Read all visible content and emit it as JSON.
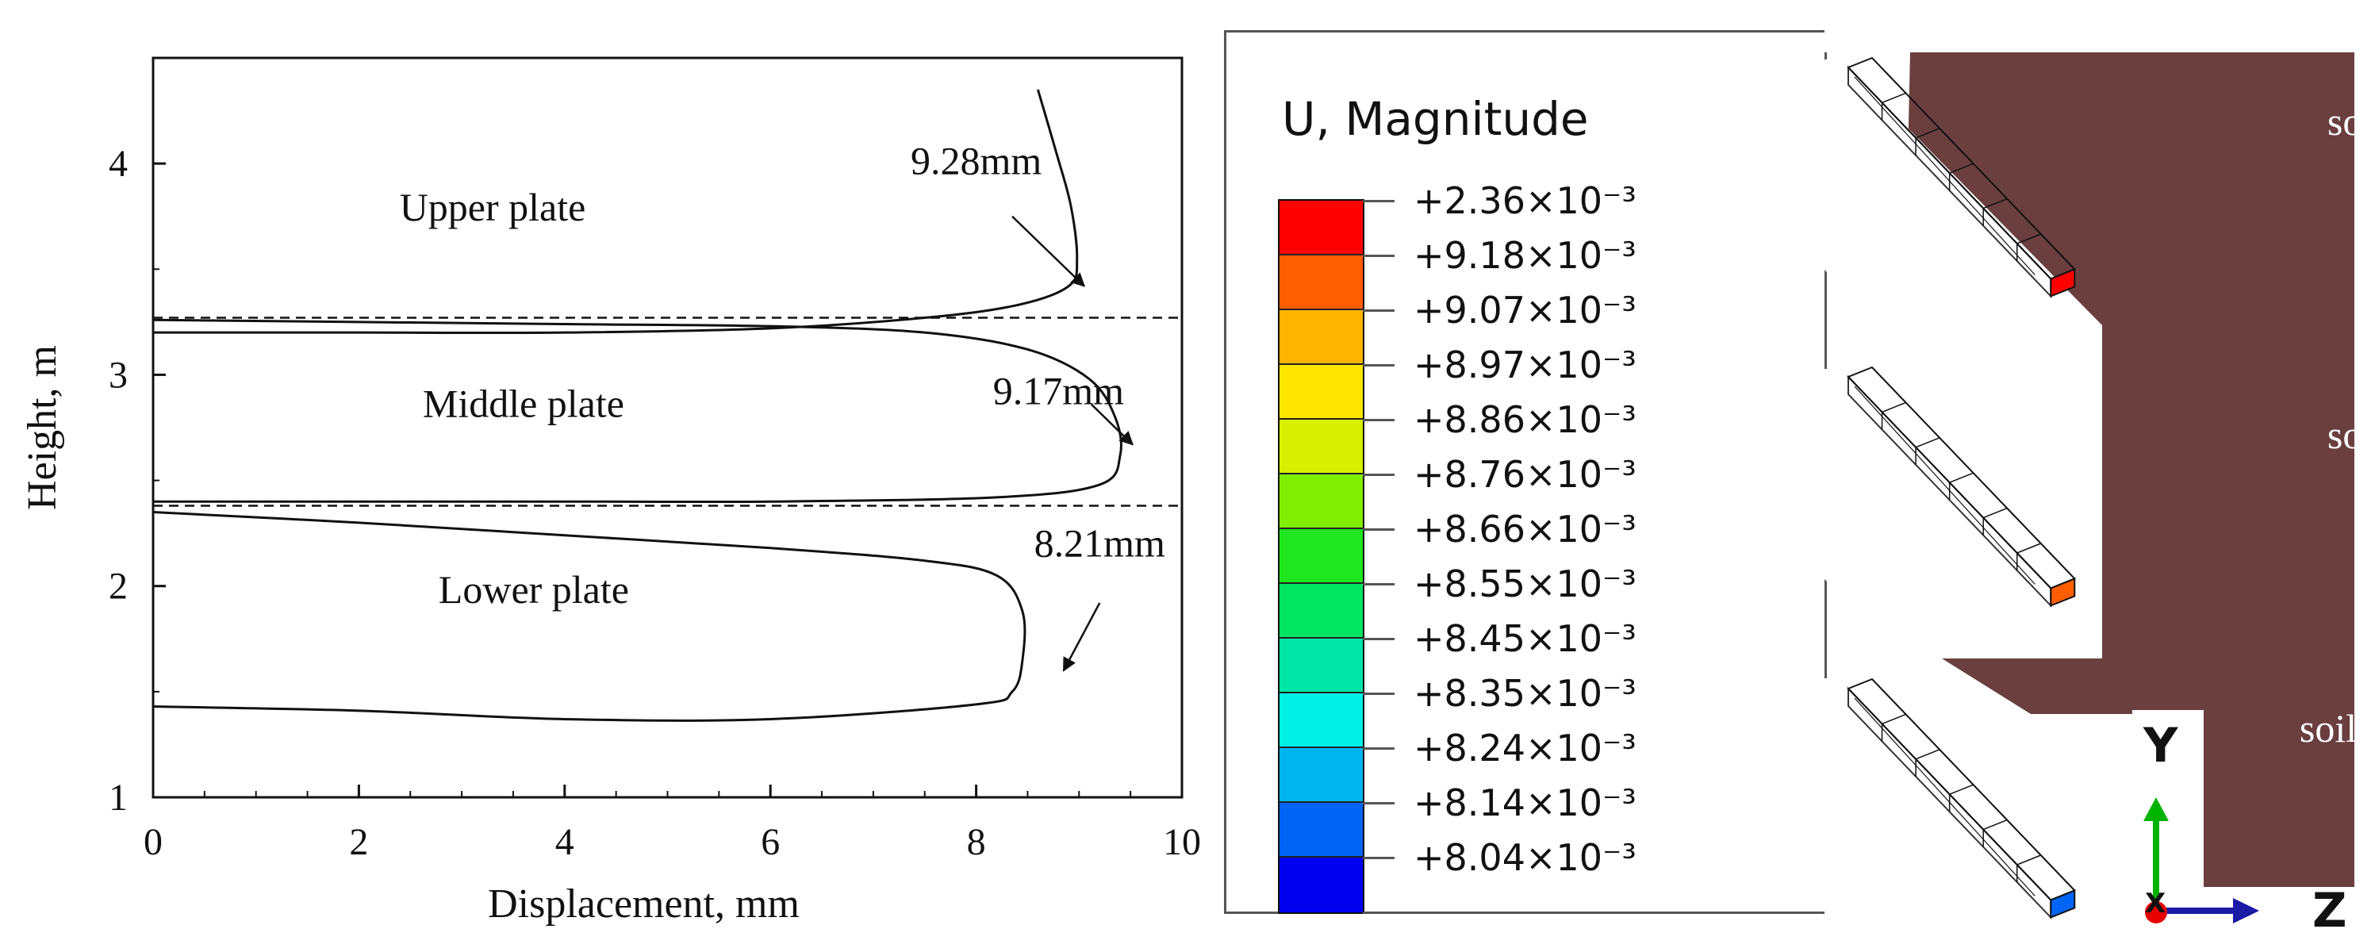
{
  "chart_data": {
    "type": "line",
    "title": "",
    "xlabel": "Displacement, mm",
    "ylabel": "Height, m",
    "xlim": [
      0,
      10
    ],
    "ylim": [
      1,
      4.5
    ],
    "xticks": [
      0,
      2,
      4,
      6,
      8,
      10
    ],
    "yticks": [
      1,
      2,
      3,
      4
    ],
    "grid": false,
    "plate_boundaries": [
      3.27,
      2.38
    ],
    "plate_labels": [
      {
        "text": "Upper plate",
        "x": 3.3,
        "y": 3.73
      },
      {
        "text": "Middle plate",
        "x": 3.6,
        "y": 2.8
      },
      {
        "text": "Lower plate",
        "x": 3.7,
        "y": 1.92
      }
    ],
    "annotations": [
      {
        "text": "9.28mm",
        "x": 8.0,
        "y": 3.95,
        "arrow_from": [
          8.35,
          3.75
        ],
        "arrow_to": [
          9.05,
          3.42
        ]
      },
      {
        "text": "9.17mm",
        "x": 8.8,
        "y": 2.86,
        "arrow_from": [
          9.12,
          2.86
        ],
        "arrow_to": [
          9.52,
          2.67
        ]
      },
      {
        "text": "8.21mm",
        "x": 9.2,
        "y": 2.14,
        "arrow_from": [
          9.2,
          1.92
        ],
        "arrow_to": [
          8.85,
          1.6
        ]
      }
    ],
    "series": [
      {
        "points": [
          [
            8.6,
            4.35
          ],
          [
            8.78,
            4.05
          ],
          [
            8.92,
            3.8
          ],
          [
            8.98,
            3.55
          ],
          [
            8.9,
            3.42
          ],
          [
            8.4,
            3.33
          ],
          [
            7.5,
            3.27
          ],
          [
            6.0,
            3.22
          ],
          [
            4.0,
            3.2
          ],
          [
            2.0,
            3.2
          ],
          [
            0,
            3.2
          ]
        ]
      },
      {
        "points": [
          [
            0,
            3.26
          ],
          [
            2.0,
            3.25
          ],
          [
            4.0,
            3.24
          ],
          [
            6.0,
            3.23
          ],
          [
            7.5,
            3.2
          ],
          [
            8.5,
            3.12
          ],
          [
            9.1,
            2.98
          ],
          [
            9.35,
            2.8
          ],
          [
            9.4,
            2.62
          ],
          [
            9.2,
            2.48
          ],
          [
            8.2,
            2.42
          ],
          [
            6.0,
            2.4
          ],
          [
            4.0,
            2.4
          ],
          [
            0,
            2.4
          ]
        ]
      },
      {
        "points": [
          [
            0,
            2.35
          ],
          [
            2.0,
            2.3
          ],
          [
            4.0,
            2.24
          ],
          [
            6.0,
            2.18
          ],
          [
            7.5,
            2.12
          ],
          [
            8.2,
            2.05
          ],
          [
            8.45,
            1.88
          ],
          [
            8.45,
            1.65
          ],
          [
            8.35,
            1.5
          ],
          [
            8.0,
            1.44
          ],
          [
            6.0,
            1.37
          ],
          [
            4.0,
            1.37
          ],
          [
            2.0,
            1.41
          ],
          [
            0,
            1.43
          ]
        ]
      }
    ]
  },
  "legend": {
    "title": "U, Magnitude",
    "levels": [
      {
        "label": "+2.36×10⁻³",
        "color": "#ff0000"
      },
      {
        "label": "+9.18×10⁻³",
        "color": "#ff5e00"
      },
      {
        "label": "+9.07×10⁻³",
        "color": "#ffb400"
      },
      {
        "label": "+8.97×10⁻³",
        "color": "#ffe600"
      },
      {
        "label": "+8.86×10⁻³",
        "color": "#d6f000"
      },
      {
        "label": "+8.76×10⁻³",
        "color": "#80ee00"
      },
      {
        "label": "+8.66×10⁻³",
        "color": "#1fe61f"
      },
      {
        "label": "+8.55×10⁻³",
        "color": "#00e662"
      },
      {
        "label": "+8.45×10⁻³",
        "color": "#00e6a6"
      },
      {
        "label": "+8.35×10⁻³",
        "color": "#00f0e6"
      },
      {
        "label": "+8.24×10⁻³",
        "color": "#00b4f0"
      },
      {
        "label": "+8.14×10⁻³",
        "color": "#0064f5"
      },
      {
        "label": "+8.04×10⁻³",
        "color": "#0000f0"
      }
    ],
    "last_label": "+8.04×10⁻³"
  },
  "model": {
    "soil_label": "soil",
    "soil_color": "#6b3f3f",
    "axis_y": "Y",
    "axis_z": "Z",
    "axis_x": "X",
    "axis_y_color": "#00b300",
    "axis_z_color": "#1a1aa6",
    "origin_color": "#e60000"
  }
}
